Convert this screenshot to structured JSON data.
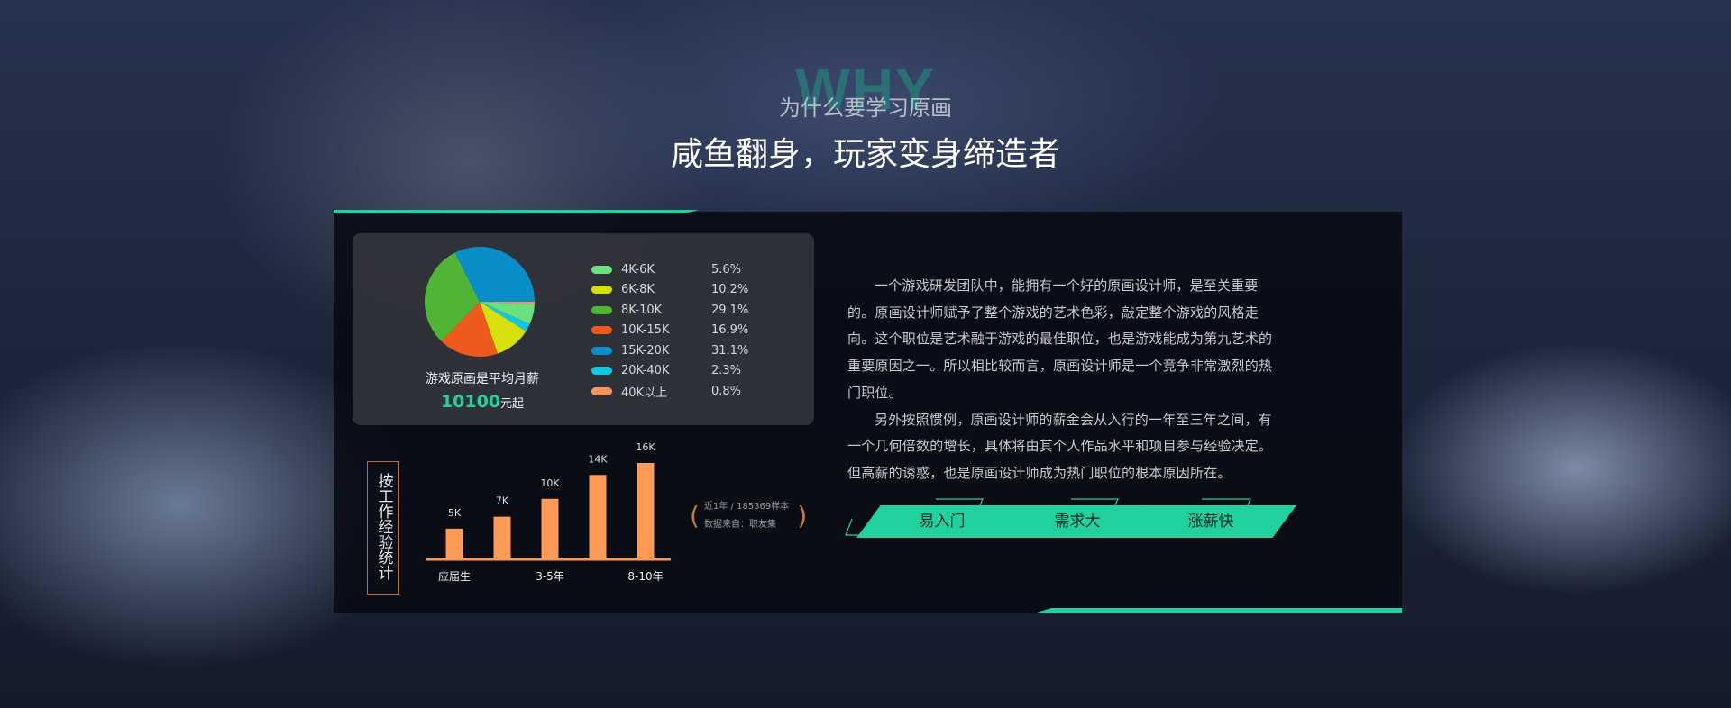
{
  "header": {
    "watermark": "WHY",
    "subtitle": "为什么要学习原画",
    "title": "咸鱼翻身，玩家变身缔造者"
  },
  "salary_card": {
    "caption": "游戏原画是平均月薪",
    "average_value": "10100",
    "average_unit": "元起"
  },
  "chart_data": [
    {
      "type": "pie",
      "legend_placement": "right",
      "slices": [
        {
          "name": "4K-6K",
          "value": 5.6,
          "label": "5.6%",
          "color": "#6be07e"
        },
        {
          "name": "6K-8K",
          "value": 10.2,
          "label": "10.2%",
          "color": "#d6e00b"
        },
        {
          "name": "8K-10K",
          "value": 29.1,
          "label": "29.1%",
          "color": "#50b535"
        },
        {
          "name": "10K-15K",
          "value": 16.9,
          "label": "16.9%",
          "color": "#ee5a1e"
        },
        {
          "name": "15K-20K",
          "value": 31.1,
          "label": "31.1%",
          "color": "#0a8ec9"
        },
        {
          "name": "20K-40K",
          "value": 2.3,
          "label": "2.3%",
          "color": "#15c6e0"
        },
        {
          "name": "40K以上",
          "value": 0.8,
          "label": "0.8%",
          "color": "#f9955a"
        }
      ],
      "draw_order_clockwise_from_east": [
        "40K以上",
        "4K-6K",
        "20K-40K",
        "6K-8K",
        "10K-15K",
        "8K-10K",
        "15K-20K"
      ]
    },
    {
      "type": "bar",
      "title": "按工作经验统计",
      "color": "#fd9a55",
      "categories": [
        "应届生",
        "",
        "3-5年",
        "",
        "8-10年"
      ],
      "values": [
        5,
        7,
        10,
        14,
        16
      ],
      "data_labels": [
        "5K",
        "7K",
        "10K",
        "14K",
        "16K"
      ],
      "ylim": [
        0,
        16
      ]
    }
  ],
  "note": {
    "line1": "近1年 / 185369样本",
    "line2": "数据来自：职友集"
  },
  "description": [
    "一个游戏研发团队中，能拥有一个好的原画设计师，是至关重要的。原画设计师赋予了整个游戏的艺术色彩，敲定整个游戏的风格走向。这个职位是艺术融于游戏的最佳职位，也是游戏能成为第九艺术的重要原因之一。所以相比较而言，原画设计师是一个竞争非常激烈的热门职位。",
    "另外按照惯例，原画设计师的薪金会从入行的一年至三年之间，有一个几何倍数的增长，具体将由其个人作品水平和项目参与经验决定。但高薪的诱惑，也是原画设计师成为热门职位的根本原因所在。"
  ],
  "tags": [
    "易入门",
    "需求大",
    "涨薪快"
  ],
  "colors": {
    "accent": "#22d1a0",
    "bar": "#fd9a55"
  }
}
